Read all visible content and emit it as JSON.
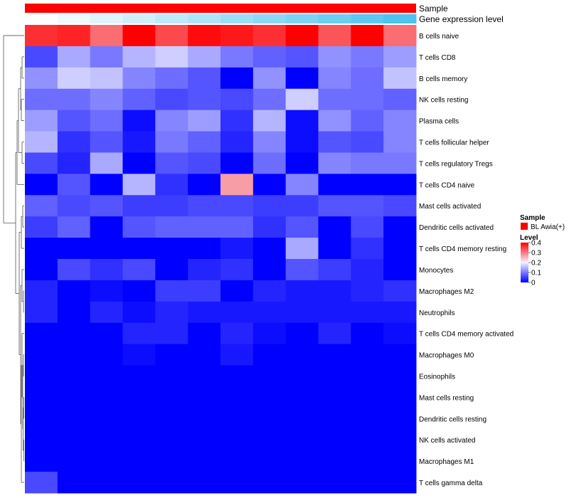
{
  "chart_data": {
    "type": "heatmap",
    "annotation_labels": {
      "sample": "Sample",
      "gene_expression": "Gene expression level"
    },
    "gene_expression_levels": [
      0.0,
      0.09,
      0.18,
      0.27,
      0.36,
      0.45,
      0.55,
      0.64,
      0.73,
      0.82,
      0.91,
      1.0
    ],
    "gene_expression_colors": {
      "low": "#ffffff",
      "high": "#4dc3f0"
    },
    "sample_bar_color": "#ff0000",
    "rows": [
      "B cells naive",
      "T cells CD8",
      "B cells memory",
      "NK cells resting",
      "Plasma cells",
      "T cells follicular helper",
      "T cells regulatory  Tregs",
      "T cells CD4 naive",
      "Mast cells activated",
      "Dendritic cells activated",
      "T cells CD4 memory resting",
      "Monocytes",
      "Macrophages M2",
      "Neutrophils",
      "T cells CD4 memory activated",
      "Macrophages M0",
      "Eosinophils",
      "Mast cells resting",
      "Dendritic cells resting",
      "NK cells activated",
      "Macrophages M1",
      "T cells gamma delta"
    ],
    "values": [
      [
        0.36,
        0.37,
        0.31,
        0.4,
        0.34,
        0.39,
        0.38,
        0.36,
        0.4,
        0.33,
        0.4,
        0.31
      ],
      [
        0.06,
        0.14,
        0.1,
        0.15,
        0.17,
        0.14,
        0.1,
        0.08,
        0.07,
        0.12,
        0.1,
        0.13
      ],
      [
        0.12,
        0.17,
        0.16,
        0.11,
        0.09,
        0.07,
        0.0,
        0.12,
        0.0,
        0.11,
        0.09,
        0.16
      ],
      [
        0.09,
        0.09,
        0.11,
        0.08,
        0.06,
        0.07,
        0.06,
        0.09,
        0.17,
        0.09,
        0.09,
        0.08
      ],
      [
        0.13,
        0.07,
        0.09,
        0.01,
        0.11,
        0.13,
        0.04,
        0.15,
        0.01,
        0.12,
        0.08,
        0.11
      ],
      [
        0.15,
        0.04,
        0.07,
        0.02,
        0.1,
        0.08,
        0.03,
        0.11,
        0.01,
        0.07,
        0.06,
        0.11
      ],
      [
        0.06,
        0.03,
        0.14,
        0.0,
        0.07,
        0.06,
        0.0,
        0.09,
        0.0,
        0.11,
        0.1,
        0.1
      ],
      [
        0.0,
        0.07,
        0.0,
        0.15,
        0.04,
        0.0,
        0.27,
        0.0,
        0.11,
        0.0,
        0.0,
        0.0
      ],
      [
        0.08,
        0.06,
        0.07,
        0.05,
        0.05,
        0.06,
        0.06,
        0.05,
        0.05,
        0.07,
        0.07,
        0.06
      ],
      [
        0.05,
        0.08,
        0.0,
        0.07,
        0.08,
        0.08,
        0.08,
        0.04,
        0.07,
        0.0,
        0.06,
        0.0
      ],
      [
        0.0,
        0.0,
        0.0,
        0.0,
        0.0,
        0.0,
        0.02,
        0.0,
        0.14,
        0.0,
        0.04,
        0.0
      ],
      [
        0.0,
        0.06,
        0.04,
        0.06,
        0.0,
        0.03,
        0.04,
        0.0,
        0.07,
        0.05,
        0.03,
        0.0
      ],
      [
        0.03,
        0.0,
        0.01,
        0.0,
        0.05,
        0.05,
        0.0,
        0.03,
        0.02,
        0.02,
        0.03,
        0.04
      ],
      [
        0.03,
        0.0,
        0.03,
        0.01,
        0.03,
        0.02,
        0.02,
        0.02,
        0.02,
        0.02,
        0.02,
        0.02
      ],
      [
        0.0,
        0.0,
        0.0,
        0.03,
        0.03,
        0.0,
        0.03,
        0.01,
        0.0,
        0.03,
        0.0,
        0.01
      ],
      [
        0.0,
        0.0,
        0.0,
        0.01,
        0.0,
        0.0,
        0.02,
        0.0,
        0.0,
        0.0,
        0.0,
        0.0
      ],
      [
        0.0,
        0.0,
        0.0,
        0.0,
        0.0,
        0.0,
        0.0,
        0.0,
        0.0,
        0.0,
        0.0,
        0.0
      ],
      [
        0.0,
        0.0,
        0.0,
        0.0,
        0.0,
        0.0,
        0.0,
        0.0,
        0.0,
        0.0,
        0.0,
        0.0
      ],
      [
        0.0,
        0.0,
        0.0,
        0.0,
        0.0,
        0.0,
        0.0,
        0.0,
        0.0,
        0.0,
        0.0,
        0.0
      ],
      [
        0.0,
        0.0,
        0.0,
        0.0,
        0.0,
        0.0,
        0.0,
        0.0,
        0.0,
        0.0,
        0.0,
        0.0
      ],
      [
        0.0,
        0.0,
        0.0,
        0.0,
        0.0,
        0.0,
        0.0,
        0.0,
        0.0,
        0.0,
        0.0,
        0.0
      ],
      [
        0.06,
        0.0,
        0.0,
        0.0,
        0.0,
        0.0,
        0.0,
        0.0,
        0.0,
        0.0,
        0.0,
        0.0
      ]
    ],
    "color_scale": {
      "min": 0,
      "max": 0.4,
      "stops": [
        {
          "value": 0.0,
          "color": "#0000ff"
        },
        {
          "value": 0.2,
          "color": "#f2f2ff"
        },
        {
          "value": 0.4,
          "color": "#ff0000"
        }
      ]
    },
    "legend": {
      "sample_title": "Sample",
      "sample_entry": "BL Awia(+)",
      "level_title": "Level",
      "ticks": [
        {
          "value": 0.4,
          "label": "0.4"
        },
        {
          "value": 0.3,
          "label": "0.3"
        },
        {
          "value": 0.2,
          "label": "0.2"
        },
        {
          "value": 0.1,
          "label": "0.1"
        },
        {
          "value": 0.0,
          "label": "0"
        }
      ],
      "placement": "right"
    },
    "dendrogram": "rows",
    "grid": false
  }
}
